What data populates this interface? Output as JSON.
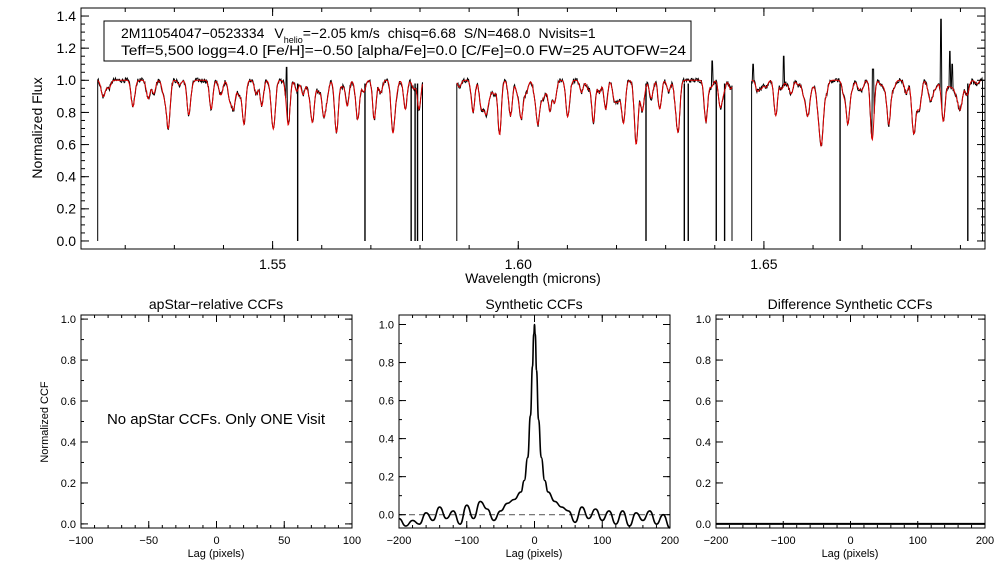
{
  "chart_data": [
    {
      "type": "line",
      "panel": "spectrum",
      "xlabel": "Wavelength (microns)",
      "ylabel": "Normalized Flux",
      "xlim": [
        1.511,
        1.695
      ],
      "ylim": [
        -0.05,
        1.45
      ],
      "xticks": [
        1.55,
        1.6,
        1.65
      ],
      "xtick_labels": [
        "1.55",
        "1.60",
        "1.65"
      ],
      "yticks": [
        0.0,
        0.2,
        0.4,
        0.6,
        0.8,
        1.0,
        1.2,
        1.4
      ],
      "ytick_labels": [
        "0.0",
        "0.2",
        "0.4",
        "0.6",
        "0.8",
        "1.0",
        "1.2",
        "1.4"
      ],
      "info_box": {
        "star_id": "2M11054047−0523334",
        "vhelio_label": "V",
        "vhelio_sub": "helio",
        "vhelio_value": "=−2.05 km/s",
        "chisq": "chisq=6.68",
        "snr": "S/N=468.0",
        "nvisits": "Nvisits=1",
        "line2": "Teff=5,500 logg=4.0 [Fe/H]=−0.50 [alpha/Fe]=0.0 [C/Fe]=0.0 FW=25 AUTOFW=24"
      },
      "chips": [
        [
          1.5144,
          1.5805
        ],
        [
          1.5875,
          1.6435
        ],
        [
          1.6475,
          1.6945
        ]
      ],
      "series": [
        {
          "name": "observed",
          "color": "#000000"
        },
        {
          "name": "synthetic model",
          "color": "#dd0000"
        }
      ],
      "absorption_lines": [
        [
          1.5167,
          0.05
        ],
        [
          1.5215,
          0.12
        ],
        [
          1.5246,
          0.08
        ],
        [
          1.5288,
          0.28
        ],
        [
          1.5329,
          0.15
        ],
        [
          1.5375,
          0.18
        ],
        [
          1.5413,
          0.12
        ],
        [
          1.5442,
          0.22
        ],
        [
          1.5478,
          0.16
        ],
        [
          1.5503,
          0.2
        ],
        [
          1.5532,
          0.24
        ],
        [
          1.5581,
          0.19
        ],
        [
          1.5604,
          0.14
        ],
        [
          1.563,
          0.26
        ],
        [
          1.5652,
          0.16
        ],
        [
          1.5673,
          0.18
        ],
        [
          1.5707,
          0.24
        ],
        [
          1.5745,
          0.26
        ],
        [
          1.577,
          0.18
        ],
        [
          1.5798,
          0.18
        ],
        [
          1.5908,
          0.2
        ],
        [
          1.5935,
          0.18
        ],
        [
          1.5962,
          0.34
        ],
        [
          1.5985,
          0.18
        ],
        [
          1.6006,
          0.14
        ],
        [
          1.604,
          0.26
        ],
        [
          1.6064,
          0.18
        ],
        [
          1.61,
          0.2
        ],
        [
          1.6153,
          0.26
        ],
        [
          1.6178,
          0.18
        ],
        [
          1.6214,
          0.22
        ],
        [
          1.624,
          0.28
        ],
        [
          1.6288,
          0.18
        ],
        [
          1.6326,
          0.2
        ],
        [
          1.6382,
          0.26
        ],
        [
          1.6411,
          0.16
        ],
        [
          1.6524,
          0.22
        ],
        [
          1.6588,
          0.16
        ],
        [
          1.6617,
          0.2
        ],
        [
          1.6671,
          0.22
        ],
        [
          1.672,
          0.3
        ],
        [
          1.6754,
          0.18
        ],
        [
          1.6806,
          0.2
        ],
        [
          1.6865,
          0.16
        ],
        [
          1.6898,
          0.12
        ]
      ],
      "bad_pixels": [
        1.5551,
        1.5688,
        1.5782,
        1.579,
        1.5795,
        1.626,
        1.6338,
        1.6346,
        1.6403,
        1.642,
        1.6655,
        1.6915
      ],
      "emission_spikes": [
        [
          1.5528,
          1.08
        ],
        [
          1.6395,
          1.12
        ],
        [
          1.6478,
          1.1
        ],
        [
          1.654,
          1.15
        ],
        [
          1.6722,
          1.07
        ],
        [
          1.686,
          1.38
        ],
        [
          1.6878,
          1.18
        ],
        [
          1.6883,
          1.1
        ]
      ]
    },
    {
      "type": "line",
      "panel": "apStar-relative",
      "title": "apStar−relative CCFs",
      "xlabel": "Lag (pixels)",
      "ylabel": "Normalized CCF",
      "xlim": [
        -100,
        100
      ],
      "ylim": [
        -0.02,
        1.02
      ],
      "xticks": [
        -100,
        -50,
        0,
        50,
        100
      ],
      "xtick_labels": [
        "−100",
        "−50",
        "0",
        "50",
        "100"
      ],
      "yticks": [
        0.0,
        0.2,
        0.4,
        0.6,
        0.8,
        1.0
      ],
      "ytick_labels": [
        "0.0",
        "0.2",
        "0.4",
        "0.6",
        "0.8",
        "1.0"
      ],
      "annotation": "No apStar CCFs.  Only ONE Visit",
      "series": []
    },
    {
      "type": "line",
      "panel": "synthetic",
      "title": "Synthetic CCFs",
      "xlabel": "Lag (pixels)",
      "xlim": [
        -200,
        200
      ],
      "ylim": [
        -0.07,
        1.05
      ],
      "xticks": [
        -200,
        -100,
        0,
        100,
        200
      ],
      "xtick_labels": [
        "−200",
        "−100",
        "0",
        "100",
        "200"
      ],
      "yticks": [
        0.0,
        0.2,
        0.4,
        0.6,
        0.8,
        1.0
      ],
      "ytick_labels": [
        "0.0",
        "0.2",
        "0.4",
        "0.6",
        "0.8",
        "1.0"
      ],
      "dashed_line_y": 0.0,
      "series": [
        {
          "name": "synthetic CCF",
          "x": [
            -200,
            -190,
            -180,
            -170,
            -160,
            -150,
            -140,
            -130,
            -120,
            -110,
            -100,
            -90,
            -80,
            -70,
            -60,
            -50,
            -40,
            -30,
            -20,
            -15,
            -10,
            -6,
            -3,
            -1,
            0,
            1,
            3,
            6,
            10,
            15,
            20,
            30,
            40,
            50,
            60,
            70,
            80,
            90,
            100,
            110,
            120,
            130,
            140,
            150,
            160,
            170,
            180,
            190,
            200
          ],
          "y": [
            -0.02,
            -0.06,
            -0.03,
            -0.05,
            0.01,
            -0.03,
            0.04,
            -0.02,
            0.02,
            -0.05,
            0.05,
            -0.02,
            0.07,
            0.03,
            -0.03,
            0.02,
            0.06,
            0.08,
            0.12,
            0.18,
            0.3,
            0.52,
            0.78,
            0.95,
            1.0,
            0.95,
            0.76,
            0.5,
            0.3,
            0.18,
            0.12,
            0.07,
            0.04,
            0.02,
            -0.04,
            0.04,
            -0.02,
            0.03,
            -0.03,
            0.02,
            -0.05,
            0.02,
            -0.06,
            0.01,
            -0.03,
            0.02,
            -0.05,
            0.0,
            -0.07
          ]
        }
      ]
    },
    {
      "type": "line",
      "panel": "difference",
      "title": "Difference Synthetic CCFs",
      "xlabel": "Lag (pixels)",
      "xlim": [
        -200,
        200
      ],
      "ylim": [
        -0.02,
        1.02
      ],
      "xticks": [
        -200,
        -100,
        0,
        100,
        200
      ],
      "xtick_labels": [
        "−200",
        "−100",
        "0",
        "100",
        "200"
      ],
      "yticks": [
        0.0,
        0.2,
        0.4,
        0.6,
        0.8,
        1.0
      ],
      "ytick_labels": [
        "0.0",
        "0.2",
        "0.4",
        "0.6",
        "0.8",
        "1.0"
      ],
      "series": [
        {
          "name": "difference CCF",
          "x": [
            -200,
            200
          ],
          "y": [
            0.0,
            0.0
          ]
        }
      ]
    }
  ]
}
